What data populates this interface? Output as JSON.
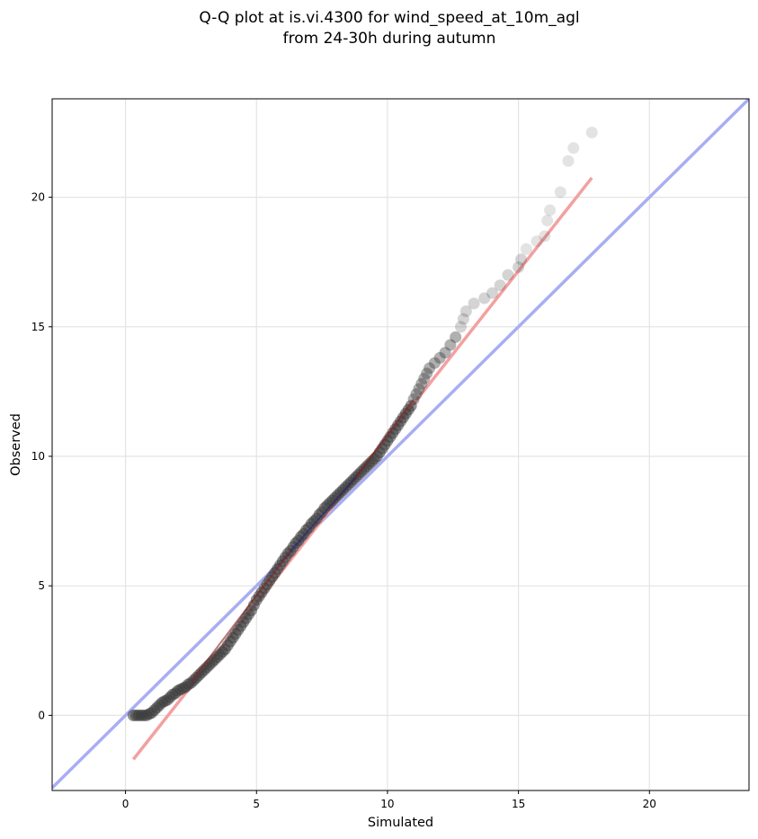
{
  "chart_data": {
    "type": "scatter",
    "title_lines": [
      "Q-Q plot at is.vi.4300 for wind_speed_at_10m_agl",
      "from 24-30h during autumn"
    ],
    "xlabel": "Simulated",
    "ylabel": "Observed",
    "xlim": [
      -2.8,
      23.8
    ],
    "ylim": [
      -2.9,
      23.8
    ],
    "xticks": [
      0,
      5,
      10,
      15,
      20
    ],
    "yticks": [
      0,
      5,
      10,
      15,
      20
    ],
    "grid": true,
    "colors": {
      "points": "#3a3a3a",
      "fit_line": "#f4a0a0",
      "identity_line": "#a8aef2",
      "overlay_low": "#8b1c1c",
      "overlay_mid": "#23237a",
      "grid": "#e4e4e4"
    },
    "quantile_points": [
      {
        "x": 0.3,
        "y": 0.0
      },
      {
        "x": 0.4,
        "y": 0.0
      },
      {
        "x": 0.5,
        "y": 0.0
      },
      {
        "x": 0.6,
        "y": 0.0
      },
      {
        "x": 0.7,
        "y": 0.0
      },
      {
        "x": 0.8,
        "y": 0.0
      },
      {
        "x": 0.9,
        "y": 0.05
      },
      {
        "x": 1.0,
        "y": 0.1
      },
      {
        "x": 1.1,
        "y": 0.2
      },
      {
        "x": 1.2,
        "y": 0.3
      },
      {
        "x": 1.3,
        "y": 0.4
      },
      {
        "x": 1.4,
        "y": 0.5
      },
      {
        "x": 1.5,
        "y": 0.55
      },
      {
        "x": 1.6,
        "y": 0.6
      },
      {
        "x": 1.7,
        "y": 0.7
      },
      {
        "x": 1.8,
        "y": 0.8
      },
      {
        "x": 1.9,
        "y": 0.85
      },
      {
        "x": 2.0,
        "y": 0.95
      },
      {
        "x": 2.1,
        "y": 1.0
      },
      {
        "x": 2.2,
        "y": 1.05
      },
      {
        "x": 2.3,
        "y": 1.1
      },
      {
        "x": 2.4,
        "y": 1.2
      },
      {
        "x": 2.5,
        "y": 1.25
      },
      {
        "x": 2.6,
        "y": 1.35
      },
      {
        "x": 2.7,
        "y": 1.45
      },
      {
        "x": 2.8,
        "y": 1.55
      },
      {
        "x": 2.9,
        "y": 1.65
      },
      {
        "x": 3.0,
        "y": 1.75
      },
      {
        "x": 3.1,
        "y": 1.85
      },
      {
        "x": 3.2,
        "y": 1.95
      },
      {
        "x": 3.3,
        "y": 2.05
      },
      {
        "x": 3.4,
        "y": 2.15
      },
      {
        "x": 3.5,
        "y": 2.25
      },
      {
        "x": 3.6,
        "y": 2.35
      },
      {
        "x": 3.7,
        "y": 2.45
      },
      {
        "x": 3.8,
        "y": 2.55
      },
      {
        "x": 3.9,
        "y": 2.7
      },
      {
        "x": 4.0,
        "y": 2.85
      },
      {
        "x": 4.1,
        "y": 3.0
      },
      {
        "x": 4.2,
        "y": 3.15
      },
      {
        "x": 4.3,
        "y": 3.3
      },
      {
        "x": 4.4,
        "y": 3.45
      },
      {
        "x": 4.5,
        "y": 3.6
      },
      {
        "x": 4.6,
        "y": 3.75
      },
      {
        "x": 4.7,
        "y": 3.9
      },
      {
        "x": 4.8,
        "y": 4.05
      },
      {
        "x": 4.9,
        "y": 4.25
      },
      {
        "x": 5.0,
        "y": 4.45
      },
      {
        "x": 5.1,
        "y": 4.6
      },
      {
        "x": 5.2,
        "y": 4.75
      },
      {
        "x": 5.3,
        "y": 4.9
      },
      {
        "x": 5.4,
        "y": 5.05
      },
      {
        "x": 5.5,
        "y": 5.2
      },
      {
        "x": 5.6,
        "y": 5.35
      },
      {
        "x": 5.7,
        "y": 5.5
      },
      {
        "x": 5.8,
        "y": 5.65
      },
      {
        "x": 5.9,
        "y": 5.8
      },
      {
        "x": 6.0,
        "y": 5.95
      },
      {
        "x": 6.1,
        "y": 6.1
      },
      {
        "x": 6.2,
        "y": 6.25
      },
      {
        "x": 6.3,
        "y": 6.35
      },
      {
        "x": 6.4,
        "y": 6.5
      },
      {
        "x": 6.5,
        "y": 6.65
      },
      {
        "x": 6.6,
        "y": 6.75
      },
      {
        "x": 6.7,
        "y": 6.9
      },
      {
        "x": 6.8,
        "y": 7.0
      },
      {
        "x": 6.9,
        "y": 7.15
      },
      {
        "x": 7.0,
        "y": 7.25
      },
      {
        "x": 7.1,
        "y": 7.4
      },
      {
        "x": 7.2,
        "y": 7.5
      },
      {
        "x": 7.3,
        "y": 7.6
      },
      {
        "x": 7.4,
        "y": 7.75
      },
      {
        "x": 7.5,
        "y": 7.85
      },
      {
        "x": 7.6,
        "y": 8.0
      },
      {
        "x": 7.7,
        "y": 8.1
      },
      {
        "x": 7.8,
        "y": 8.2
      },
      {
        "x": 7.9,
        "y": 8.3
      },
      {
        "x": 8.0,
        "y": 8.4
      },
      {
        "x": 8.1,
        "y": 8.5
      },
      {
        "x": 8.2,
        "y": 8.6
      },
      {
        "x": 8.3,
        "y": 8.7
      },
      {
        "x": 8.4,
        "y": 8.8
      },
      {
        "x": 8.5,
        "y": 8.9
      },
      {
        "x": 8.6,
        "y": 9.0
      },
      {
        "x": 8.7,
        "y": 9.1
      },
      {
        "x": 8.8,
        "y": 9.2
      },
      {
        "x": 8.9,
        "y": 9.3
      },
      {
        "x": 9.0,
        "y": 9.4
      },
      {
        "x": 9.1,
        "y": 9.5
      },
      {
        "x": 9.2,
        "y": 9.6
      },
      {
        "x": 9.3,
        "y": 9.7
      },
      {
        "x": 9.4,
        "y": 9.8
      },
      {
        "x": 9.5,
        "y": 9.9
      },
      {
        "x": 9.6,
        "y": 10.0
      },
      {
        "x": 9.7,
        "y": 10.15
      },
      {
        "x": 9.8,
        "y": 10.3
      },
      {
        "x": 9.9,
        "y": 10.45
      },
      {
        "x": 10.0,
        "y": 10.6
      },
      {
        "x": 10.1,
        "y": 10.75
      },
      {
        "x": 10.2,
        "y": 10.9
      },
      {
        "x": 10.3,
        "y": 11.05
      },
      {
        "x": 10.4,
        "y": 11.2
      },
      {
        "x": 10.5,
        "y": 11.35
      },
      {
        "x": 10.6,
        "y": 11.5
      },
      {
        "x": 10.7,
        "y": 11.65
      },
      {
        "x": 10.8,
        "y": 11.8
      },
      {
        "x": 10.9,
        "y": 11.95
      },
      {
        "x": 11.0,
        "y": 12.2
      },
      {
        "x": 11.1,
        "y": 12.4
      },
      {
        "x": 11.2,
        "y": 12.6
      },
      {
        "x": 11.3,
        "y": 12.8
      },
      {
        "x": 11.4,
        "y": 13.0
      },
      {
        "x": 11.5,
        "y": 13.2
      },
      {
        "x": 11.6,
        "y": 13.4
      },
      {
        "x": 11.8,
        "y": 13.6
      },
      {
        "x": 12.0,
        "y": 13.8
      },
      {
        "x": 12.2,
        "y": 14.0
      },
      {
        "x": 12.4,
        "y": 14.3
      },
      {
        "x": 12.6,
        "y": 14.6
      },
      {
        "x": 12.8,
        "y": 15.0
      },
      {
        "x": 12.9,
        "y": 15.3
      },
      {
        "x": 13.0,
        "y": 15.6
      },
      {
        "x": 13.3,
        "y": 15.9
      },
      {
        "x": 13.7,
        "y": 16.1
      },
      {
        "x": 14.0,
        "y": 16.3
      },
      {
        "x": 14.3,
        "y": 16.6
      },
      {
        "x": 14.6,
        "y": 17.0
      },
      {
        "x": 15.0,
        "y": 17.3
      },
      {
        "x": 15.1,
        "y": 17.6
      },
      {
        "x": 15.3,
        "y": 18.0
      },
      {
        "x": 15.7,
        "y": 18.3
      },
      {
        "x": 16.0,
        "y": 18.5
      },
      {
        "x": 16.1,
        "y": 19.1
      },
      {
        "x": 16.2,
        "y": 19.5
      },
      {
        "x": 16.6,
        "y": 20.2
      },
      {
        "x": 16.9,
        "y": 21.4
      },
      {
        "x": 17.1,
        "y": 21.9
      },
      {
        "x": 17.8,
        "y": 22.5
      }
    ],
    "fit_line": {
      "x": [
        0.3,
        17.8
      ],
      "y": [
        -1.7,
        20.75
      ]
    },
    "identity_line": {
      "x": [
        -2.8,
        23.8
      ],
      "y": [
        -2.8,
        23.8
      ]
    },
    "overlay_lines": [
      {
        "x": [
          2.5,
          6.3
        ],
        "y": [
          1.3,
          6.35
        ],
        "color_key": "overlay_low"
      },
      {
        "x": [
          6.3,
          8.8
        ],
        "y": [
          6.35,
          9.2
        ],
        "color_key": "overlay_mid"
      },
      {
        "x": [
          8.8,
          11.0
        ],
        "y": [
          9.2,
          12.2
        ],
        "color_key": "overlay_low"
      }
    ]
  }
}
